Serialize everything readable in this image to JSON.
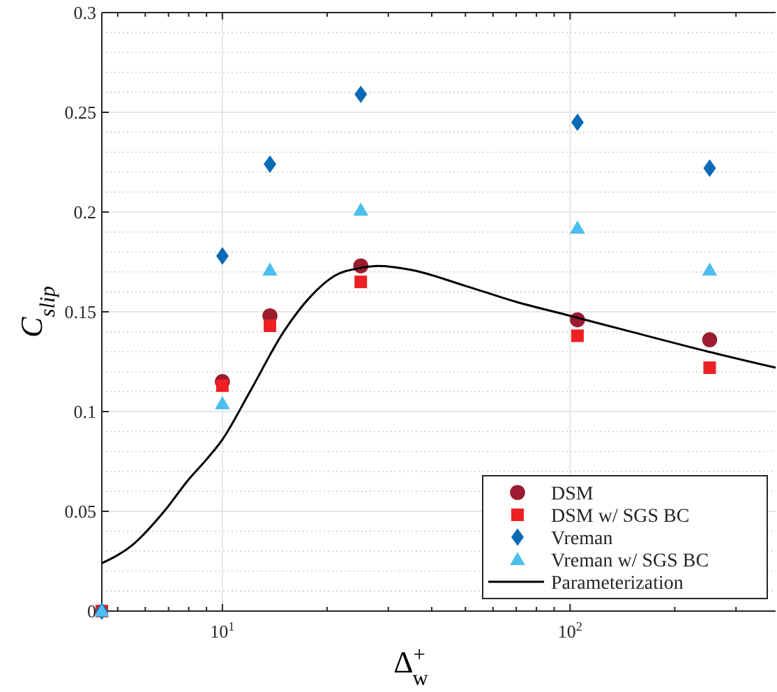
{
  "chart_data": {
    "type": "scatter",
    "xlabel": "Δ$^{+}$$_{w}$",
    "ylabel": "C$_{slip}$",
    "log": "x",
    "grid": true,
    "legend": "bottom right",
    "xlim": [
      4.5,
      390
    ],
    "ylim": [
      0,
      0.3
    ],
    "xticks": [
      {
        "value": 5,
        "label": null
      },
      {
        "value": 6,
        "label": null
      },
      {
        "value": 7,
        "label": null
      },
      {
        "value": 8,
        "label": null
      },
      {
        "value": 9,
        "label": null
      },
      {
        "value": 10,
        "label": "10$^{1}$"
      },
      {
        "value": 20,
        "label": null
      },
      {
        "value": 30,
        "label": null
      },
      {
        "value": 40,
        "label": null
      },
      {
        "value": 50,
        "label": null
      },
      {
        "value": 60,
        "label": null
      },
      {
        "value": 70,
        "label": null
      },
      {
        "value": 80,
        "label": null
      },
      {
        "value": 90,
        "label": null
      },
      {
        "value": 100,
        "label": "10$^{2}$"
      },
      {
        "value": 200,
        "label": null
      },
      {
        "value": 300,
        "label": null
      }
    ],
    "yticks": [
      0,
      {
        "value": 0.01,
        "label": null
      },
      {
        "value": 0.02,
        "label": null
      },
      {
        "value": 0.03,
        "label": null
      },
      {
        "value": 0.04,
        "label": null
      },
      0.05,
      {
        "value": 0.06,
        "label": null
      },
      {
        "value": 0.07,
        "label": null
      },
      {
        "value": 0.08,
        "label": null
      },
      {
        "value": 0.09,
        "label": null
      },
      0.1,
      {
        "value": 0.11,
        "label": null
      },
      {
        "value": 0.12,
        "label": null
      },
      {
        "value": 0.13,
        "label": null
      },
      {
        "value": 0.14,
        "label": null
      },
      0.15,
      {
        "value": 0.16,
        "label": null
      },
      {
        "value": 0.17,
        "label": null
      },
      {
        "value": 0.18,
        "label": null
      },
      {
        "value": 0.19,
        "label": null
      },
      0.2,
      {
        "value": 0.21,
        "label": null
      },
      {
        "value": 0.22,
        "label": null
      },
      {
        "value": 0.23,
        "label": null
      },
      {
        "value": 0.24,
        "label": null
      },
      0.25,
      {
        "value": 0.26,
        "label": null
      },
      {
        "value": 0.27,
        "label": null
      },
      {
        "value": 0.28,
        "label": null
      },
      {
        "value": 0.29,
        "label": null
      },
      0.3
    ],
    "x": [
      4.5,
      10,
      13.7,
      25,
      105,
      252
    ],
    "series": [
      {
        "name": "DSM",
        "color": "#9b1b30",
        "marker": "circle",
        "values": [
          null,
          0.115,
          0.148,
          0.173,
          0.146,
          0.136
        ]
      },
      {
        "name": "DSM w/ SGS BC",
        "color": "#ed2024",
        "marker": "square",
        "values": [
          0,
          0.113,
          0.143,
          0.165,
          0.138,
          0.122
        ]
      },
      {
        "name": "Vreman",
        "color": "#0a6ab6",
        "marker": "diamond",
        "values": [
          0,
          0.178,
          0.224,
          0.259,
          0.245,
          0.222
        ]
      },
      {
        "name": "Vreman w/ SGS BC",
        "color": "#4dbeee",
        "marker": "triangle",
        "values": [
          0,
          0.104,
          0.171,
          0.201,
          0.192,
          0.171
        ]
      },
      {
        "name": "Parameterization",
        "type": "line",
        "color": "#000000",
        "line_style": "solid",
        "x": [
          4.5,
          5.5,
          6.8,
          8,
          9,
          10,
          12,
          15,
          18,
          21,
          25,
          28,
          35,
          50,
          70,
          100,
          150,
          250,
          390
        ],
        "values": [
          0.024,
          0.033,
          0.05,
          0.066,
          0.076,
          0.086,
          0.11,
          0.14,
          0.158,
          0.168,
          0.172,
          0.173,
          0.171,
          0.163,
          0.155,
          0.148,
          0.14,
          0.13,
          0.122
        ]
      }
    ]
  }
}
